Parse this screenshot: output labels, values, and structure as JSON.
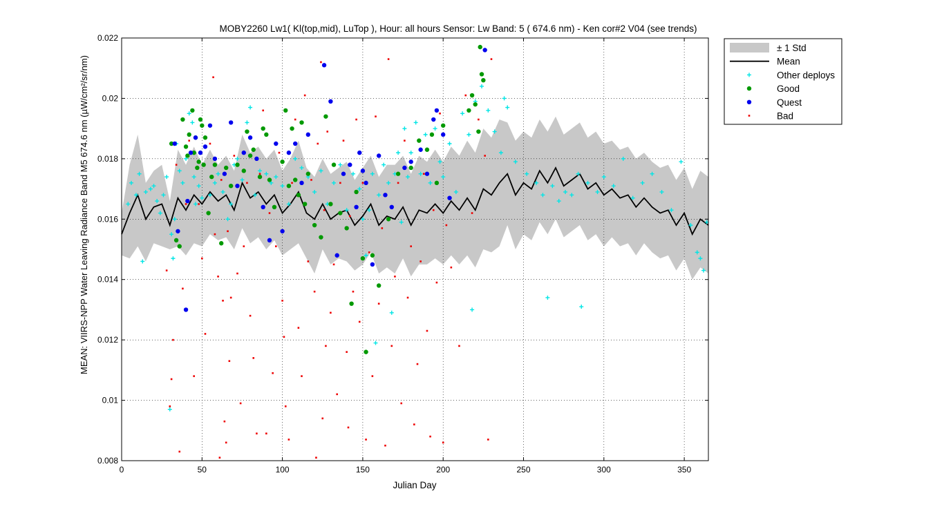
{
  "chart_data": {
    "type": "scatter",
    "title": "MOBY2260   Lw1( Kl(top,mid), LuTop ),   Hour: all hours  Sensor: Lw Band: 5 ( 674.6 nm)  - Ken cor#2 V04 (see trends)",
    "xlabel": "Julian Day",
    "ylabel": "MEAN: VIIRS-NPP Water Leaving Radiance Band M5 674.6 nm (µW/cm²/sr/nm)",
    "xlim": [
      0,
      365
    ],
    "ylim": [
      0.008,
      0.022
    ],
    "xticks": [
      0,
      50,
      100,
      150,
      200,
      250,
      300,
      350
    ],
    "yticks": [
      0.008,
      0.01,
      0.012,
      0.014,
      0.016,
      0.018,
      0.02,
      0.022
    ],
    "xtick_labels": [
      "0",
      "50",
      "100",
      "150",
      "200",
      "250",
      "300",
      "350"
    ],
    "ytick_labels": [
      "0.008",
      "0.01",
      "0.012",
      "0.014",
      "0.016",
      "0.018",
      "0.02",
      "0.022"
    ],
    "grid": true,
    "legend_position": "outside-top-right",
    "legend": [
      {
        "label": "± 1 Std",
        "kind": "band",
        "color": "#c8c8c8"
      },
      {
        "label": "Mean",
        "kind": "line",
        "color": "#000000"
      },
      {
        "label": "Other deploys",
        "kind": "plus",
        "color": "#00e5e5"
      },
      {
        "label": "Good",
        "kind": "dot",
        "color": "#009900"
      },
      {
        "label": "Quest",
        "kind": "dot",
        "color": "#0000ee"
      },
      {
        "label": "Bad",
        "kind": "smalldot",
        "color": "#ee0000"
      }
    ],
    "mean": {
      "x": [
        0,
        5,
        10,
        15,
        20,
        25,
        30,
        35,
        40,
        45,
        50,
        55,
        60,
        65,
        70,
        75,
        80,
        85,
        90,
        95,
        100,
        105,
        110,
        115,
        120,
        125,
        130,
        135,
        140,
        145,
        150,
        155,
        160,
        165,
        170,
        175,
        180,
        185,
        190,
        195,
        200,
        205,
        210,
        215,
        220,
        225,
        230,
        235,
        240,
        245,
        250,
        255,
        260,
        265,
        270,
        275,
        280,
        285,
        290,
        295,
        300,
        305,
        310,
        315,
        320,
        325,
        330,
        335,
        340,
        345,
        350,
        355,
        360,
        365
      ],
      "y": [
        0.0155,
        0.0162,
        0.0168,
        0.016,
        0.0164,
        0.0165,
        0.0158,
        0.0167,
        0.0163,
        0.0168,
        0.0165,
        0.0169,
        0.0166,
        0.0168,
        0.0163,
        0.0172,
        0.0167,
        0.0169,
        0.0165,
        0.0168,
        0.0162,
        0.0165,
        0.0169,
        0.0162,
        0.016,
        0.0165,
        0.016,
        0.0162,
        0.0163,
        0.0158,
        0.0161,
        0.0165,
        0.0158,
        0.0161,
        0.016,
        0.0164,
        0.0158,
        0.0163,
        0.0162,
        0.0165,
        0.0162,
        0.0166,
        0.0163,
        0.0167,
        0.0163,
        0.017,
        0.0168,
        0.0172,
        0.0175,
        0.0168,
        0.0172,
        0.017,
        0.0176,
        0.0172,
        0.0177,
        0.0171,
        0.0173,
        0.0175,
        0.017,
        0.0172,
        0.0168,
        0.017,
        0.0167,
        0.0168,
        0.0164,
        0.0167,
        0.0164,
        0.0162,
        0.0163,
        0.0158,
        0.0162,
        0.0155,
        0.016,
        0.0158
      ]
    },
    "std_band": {
      "x": [
        0,
        5,
        10,
        15,
        20,
        25,
        30,
        35,
        40,
        45,
        50,
        55,
        60,
        65,
        70,
        75,
        80,
        85,
        90,
        95,
        100,
        105,
        110,
        115,
        120,
        125,
        130,
        135,
        140,
        145,
        150,
        155,
        160,
        165,
        170,
        175,
        180,
        185,
        190,
        195,
        200,
        205,
        210,
        215,
        220,
        225,
        230,
        235,
        240,
        245,
        250,
        255,
        260,
        265,
        270,
        275,
        280,
        285,
        290,
        295,
        300,
        305,
        310,
        315,
        320,
        325,
        330,
        335,
        340,
        345,
        350,
        355,
        360,
        365
      ],
      "upper": [
        0.0162,
        0.0178,
        0.0188,
        0.0172,
        0.0176,
        0.0178,
        0.0166,
        0.0183,
        0.0178,
        0.0184,
        0.0178,
        0.0183,
        0.0178,
        0.0181,
        0.0176,
        0.0188,
        0.0182,
        0.0184,
        0.018,
        0.0183,
        0.0176,
        0.018,
        0.0186,
        0.0177,
        0.0174,
        0.018,
        0.0175,
        0.0177,
        0.0179,
        0.0173,
        0.0177,
        0.0181,
        0.0174,
        0.0178,
        0.0178,
        0.0181,
        0.0175,
        0.0181,
        0.0179,
        0.0183,
        0.0179,
        0.0184,
        0.0181,
        0.0186,
        0.0182,
        0.019,
        0.0187,
        0.0193,
        0.0192,
        0.0186,
        0.0189,
        0.0187,
        0.0193,
        0.0189,
        0.0194,
        0.0188,
        0.019,
        0.0192,
        0.0187,
        0.0189,
        0.0185,
        0.0186,
        0.0183,
        0.0184,
        0.018,
        0.0182,
        0.0179,
        0.0177,
        0.0178,
        0.0173,
        0.0177,
        0.017,
        0.0176,
        0.0174
      ],
      "lower": [
        0.0148,
        0.0147,
        0.0151,
        0.0146,
        0.0152,
        0.0151,
        0.015,
        0.0151,
        0.0148,
        0.0152,
        0.0151,
        0.0155,
        0.0153,
        0.0154,
        0.015,
        0.0157,
        0.0152,
        0.0154,
        0.015,
        0.0153,
        0.0148,
        0.015,
        0.0152,
        0.0147,
        0.0142,
        0.015,
        0.0145,
        0.0147,
        0.0146,
        0.0143,
        0.0145,
        0.0149,
        0.0142,
        0.0144,
        0.0142,
        0.0147,
        0.0141,
        0.0145,
        0.0145,
        0.0147,
        0.0145,
        0.0148,
        0.0145,
        0.0148,
        0.0144,
        0.015,
        0.0149,
        0.0151,
        0.0158,
        0.015,
        0.0155,
        0.0153,
        0.0159,
        0.0155,
        0.016,
        0.0154,
        0.0156,
        0.0158,
        0.0153,
        0.0155,
        0.0151,
        0.0154,
        0.0151,
        0.0152,
        0.0148,
        0.0152,
        0.0149,
        0.0147,
        0.0148,
        0.0143,
        0.0147,
        0.014,
        0.0144,
        0.0142
      ]
    },
    "series": [
      {
        "name": "Other deploys",
        "x": [
          4,
          6,
          9,
          11,
          13,
          15,
          18,
          20,
          22,
          24,
          26,
          28,
          30,
          31,
          32,
          33,
          34,
          36,
          38,
          40,
          42,
          44,
          45,
          46,
          48,
          50,
          52,
          55,
          58,
          60,
          63,
          66,
          68,
          70,
          72,
          75,
          78,
          80,
          83,
          86,
          90,
          93,
          96,
          100,
          104,
          108,
          112,
          116,
          120,
          124,
          128,
          132,
          136,
          140,
          144,
          148,
          150,
          152,
          154,
          156,
          158,
          160,
          163,
          166,
          168,
          170,
          172,
          174,
          176,
          178,
          180,
          183,
          186,
          189,
          192,
          195,
          198,
          200,
          204,
          208,
          212,
          216,
          218,
          220,
          224,
          228,
          232,
          236,
          238,
          240,
          245,
          252,
          258,
          262,
          265,
          268,
          272,
          276,
          280,
          284,
          286,
          290,
          296,
          300,
          306,
          312,
          318,
          324,
          330,
          336,
          342,
          348,
          354,
          358,
          360,
          362,
          364
        ],
        "y": [
          0.0165,
          0.0172,
          0.0168,
          0.0175,
          0.0146,
          0.0169,
          0.017,
          0.0171,
          0.0166,
          0.0162,
          0.0168,
          0.0174,
          0.0097,
          0.0155,
          0.0147,
          0.016,
          0.0185,
          0.0176,
          0.0172,
          0.018,
          0.0195,
          0.0192,
          0.0174,
          0.0165,
          0.0171,
          0.0167,
          0.0184,
          0.0168,
          0.0172,
          0.0175,
          0.0169,
          0.016,
          0.0165,
          0.0178,
          0.018,
          0.0173,
          0.0192,
          0.0197,
          0.0168,
          0.0176,
          0.0175,
          0.0172,
          0.0174,
          0.0171,
          0.0165,
          0.018,
          0.0177,
          0.0174,
          0.0169,
          0.0176,
          0.0165,
          0.0172,
          0.0178,
          0.0163,
          0.0175,
          0.017,
          0.016,
          0.0148,
          0.0163,
          0.0175,
          0.0119,
          0.0168,
          0.0178,
          0.0172,
          0.0129,
          0.0175,
          0.0182,
          0.0159,
          0.019,
          0.0174,
          0.0182,
          0.0192,
          0.0175,
          0.0188,
          0.0172,
          0.019,
          0.0179,
          0.0174,
          0.0185,
          0.0169,
          0.0195,
          0.0188,
          0.013,
          0.0199,
          0.0204,
          0.0196,
          0.0189,
          0.0182,
          0.02,
          0.0197,
          0.0179,
          0.0175,
          0.0172,
          0.0168,
          0.0134,
          0.0171,
          0.0166,
          0.0169,
          0.0168,
          0.0175,
          0.0131,
          0.0172,
          0.0169,
          0.0174,
          0.0171,
          0.018,
          0.0167,
          0.0172,
          0.0175,
          0.0169,
          0.0163,
          0.0179,
          0.0158,
          0.0149,
          0.0147,
          0.0143,
          0.0159
        ],
        "color": "#00e5e5"
      },
      {
        "name": "Good",
        "x": [
          31,
          34,
          36,
          38,
          40,
          41,
          42,
          44,
          45,
          46,
          47,
          48,
          49,
          50,
          51,
          52,
          54,
          56,
          58,
          62,
          65,
          68,
          72,
          76,
          78,
          80,
          82,
          86,
          88,
          90,
          92,
          95,
          100,
          102,
          104,
          106,
          108,
          110,
          112,
          114,
          116,
          120,
          124,
          127,
          130,
          132,
          136,
          140,
          143,
          146,
          150,
          152,
          156,
          160,
          166,
          172,
          180,
          185,
          190,
          193,
          196,
          200,
          216,
          218,
          220,
          222,
          223,
          224,
          225
        ],
        "y": [
          0.0185,
          0.0153,
          0.0151,
          0.0193,
          0.0184,
          0.0181,
          0.0188,
          0.0196,
          0.0182,
          0.0187,
          0.0177,
          0.0179,
          0.0193,
          0.0191,
          0.0178,
          0.0187,
          0.0162,
          0.0174,
          0.0178,
          0.0152,
          0.0177,
          0.0171,
          0.0178,
          0.0176,
          0.0189,
          0.0181,
          0.0183,
          0.0174,
          0.019,
          0.0188,
          0.0173,
          0.0164,
          0.0179,
          0.0196,
          0.0171,
          0.019,
          0.0173,
          0.0168,
          0.0192,
          0.0165,
          0.0175,
          0.0158,
          0.0154,
          0.0194,
          0.0165,
          0.0178,
          0.0162,
          0.0157,
          0.0132,
          0.0169,
          0.0147,
          0.0116,
          0.0148,
          0.0138,
          0.016,
          0.0175,
          0.0177,
          0.0186,
          0.0183,
          0.0188,
          0.0172,
          0.0191,
          0.0196,
          0.0201,
          0.0198,
          0.0189,
          0.0217,
          0.0208,
          0.0206
        ],
        "color": "#009900"
      },
      {
        "name": "Quest",
        "x": [
          33,
          35,
          40,
          41,
          43,
          46,
          49,
          52,
          55,
          58,
          64,
          68,
          72,
          76,
          80,
          84,
          88,
          92,
          96,
          100,
          104,
          108,
          112,
          116,
          126,
          130,
          134,
          138,
          142,
          146,
          148,
          150,
          152,
          156,
          160,
          164,
          168,
          176,
          180,
          186,
          190,
          194,
          196,
          200,
          204,
          226
        ],
        "y": [
          0.0185,
          0.0156,
          0.013,
          0.0166,
          0.0182,
          0.0187,
          0.0182,
          0.0184,
          0.0191,
          0.018,
          0.0175,
          0.0192,
          0.0171,
          0.0182,
          0.0187,
          0.018,
          0.0164,
          0.0153,
          0.0185,
          0.0156,
          0.0182,
          0.0185,
          0.0172,
          0.0188,
          0.0211,
          0.0199,
          0.0148,
          0.0175,
          0.0178,
          0.0164,
          0.0182,
          0.0176,
          0.0172,
          0.0145,
          0.0181,
          0.0168,
          0.0164,
          0.0177,
          0.0179,
          0.0183,
          0.0175,
          0.0193,
          0.0196,
          0.0188,
          0.0167,
          0.0216
        ],
        "color": "#0000ee"
      },
      {
        "name": "Bad",
        "x": [
          28,
          30,
          31,
          32,
          34,
          36,
          38,
          40,
          42,
          45,
          48,
          50,
          52,
          55,
          57,
          58,
          60,
          61,
          62,
          63,
          64,
          65,
          66,
          67,
          68,
          70,
          72,
          74,
          76,
          78,
          80,
          82,
          84,
          86,
          88,
          90,
          92,
          94,
          96,
          98,
          100,
          101,
          102,
          104,
          106,
          108,
          110,
          112,
          114,
          116,
          118,
          120,
          121,
          122,
          124,
          125,
          126,
          127,
          128,
          130,
          132,
          134,
          136,
          138,
          140,
          141,
          142,
          144,
          146,
          148,
          150,
          152,
          154,
          156,
          158,
          160,
          162,
          164,
          166,
          168,
          170,
          172,
          174,
          176,
          178,
          180,
          182,
          184,
          186,
          188,
          190,
          192,
          194,
          196,
          198,
          200,
          202,
          205,
          210,
          214,
          218,
          222,
          226,
          228,
          230
        ],
        "y": [
          0.0143,
          0.0098,
          0.0107,
          0.012,
          0.0178,
          0.0083,
          0.0137,
          0.0165,
          0.0186,
          0.0108,
          0.0165,
          0.0147,
          0.0122,
          0.0185,
          0.0207,
          0.0155,
          0.0141,
          0.0081,
          0.0173,
          0.0133,
          0.0093,
          0.0086,
          0.0156,
          0.0113,
          0.0134,
          0.0181,
          0.0142,
          0.0099,
          0.0151,
          0.0172,
          0.0128,
          0.0114,
          0.0089,
          0.0175,
          0.0196,
          0.0089,
          0.0162,
          0.0109,
          0.0151,
          0.0182,
          0.0133,
          0.0121,
          0.0098,
          0.0087,
          0.0172,
          0.0193,
          0.0124,
          0.0108,
          0.0201,
          0.0146,
          0.0173,
          0.0136,
          0.0081,
          0.0185,
          0.0212,
          0.0094,
          0.0163,
          0.0118,
          0.0189,
          0.0129,
          0.0145,
          0.0102,
          0.0172,
          0.0186,
          0.0116,
          0.0091,
          0.0161,
          0.0136,
          0.0193,
          0.0126,
          0.0172,
          0.0087,
          0.0149,
          0.0108,
          0.0194,
          0.0132,
          0.0157,
          0.0085,
          0.0213,
          0.0118,
          0.0141,
          0.0172,
          0.0099,
          0.0186,
          0.0134,
          0.0151,
          0.0092,
          0.0112,
          0.0146,
          0.0175,
          0.0123,
          0.0088,
          0.0163,
          0.0139,
          0.0195,
          0.0086,
          0.0158,
          0.0144,
          0.0118,
          0.0201,
          0.0162,
          0.0193,
          0.0181,
          0.0087,
          0.0213
        ],
        "color": "#ee0000"
      }
    ]
  }
}
